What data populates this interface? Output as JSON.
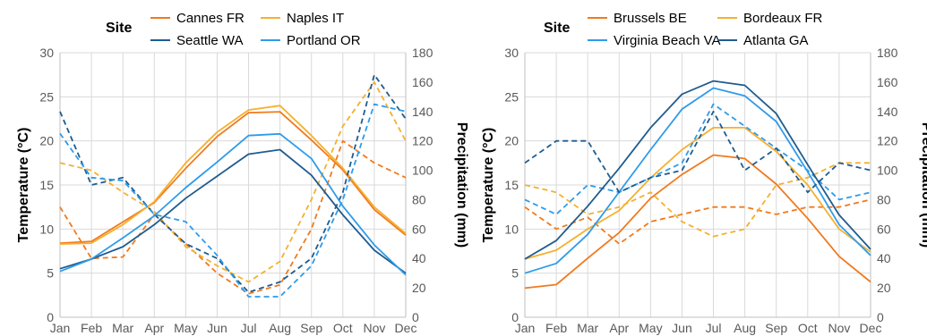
{
  "chart_data": [
    {
      "type": "line",
      "legend_title": "Site",
      "legend_placement": "top",
      "categories": [
        "Jan",
        "Feb",
        "Mar",
        "Apr",
        "May",
        "Jun",
        "Jul",
        "Aug",
        "Sep",
        "Oct",
        "Nov",
        "Dec"
      ],
      "ylabel_left": "Temperature (°C)",
      "ylabel_right": "Precipitation (mm)",
      "ylim_left": [
        0,
        30
      ],
      "ylim_right": [
        0,
        180
      ],
      "yticks_left": [
        0,
        5,
        10,
        15,
        20,
        25,
        30
      ],
      "yticks_right": [
        0,
        20,
        40,
        60,
        80,
        100,
        120,
        140,
        160,
        180
      ],
      "grid": true,
      "series": [
        {
          "name": "Cannes FR",
          "color": "#f07a1e",
          "temperature": [
            8.4,
            8.6,
            10.8,
            13.0,
            16.9,
            20.5,
            23.2,
            23.3,
            20.1,
            16.7,
            12.2,
            9.3
          ],
          "precipitation": [
            75,
            40,
            41,
            70,
            50,
            30,
            16,
            22,
            60,
            120,
            105,
            95
          ]
        },
        {
          "name": "Naples IT",
          "color": "#f5b02e",
          "temperature": [
            8.3,
            8.4,
            10.5,
            13.1,
            17.5,
            21.0,
            23.5,
            24.0,
            20.6,
            16.9,
            12.5,
            9.5
          ],
          "precipitation": [
            105,
            100,
            85,
            72,
            48,
            35,
            24,
            38,
            80,
            130,
            160,
            120
          ]
        },
        {
          "name": "Seattle WA",
          "color": "#1f5c8f",
          "temperature": [
            5.5,
            6.6,
            8.0,
            10.5,
            13.5,
            16.0,
            18.5,
            19.0,
            16.1,
            11.6,
            7.6,
            5.0
          ],
          "precipitation": [
            140,
            90,
            95,
            70,
            50,
            40,
            17,
            24,
            40,
            85,
            165,
            135
          ]
        },
        {
          "name": "Portland OR",
          "color": "#2e9bea",
          "temperature": [
            5.2,
            6.6,
            9.0,
            11.5,
            14.7,
            17.6,
            20.6,
            20.8,
            18.0,
            12.6,
            8.2,
            4.8
          ],
          "precipitation": [
            125,
            95,
            93,
            70,
            65,
            42,
            14,
            14,
            35,
            80,
            145,
            140
          ]
        }
      ]
    },
    {
      "type": "line",
      "legend_title": "Site",
      "legend_placement": "top",
      "categories": [
        "Jan",
        "Feb",
        "Mar",
        "Apr",
        "May",
        "Jun",
        "Jul",
        "Aug",
        "Sep",
        "Oct",
        "Nov",
        "Dec"
      ],
      "ylabel_left": "Temperature (°C)",
      "ylabel_right": "Precipitation (mm)",
      "ylim_left": [
        0,
        30
      ],
      "ylim_right": [
        0,
        180
      ],
      "yticks_left": [
        0,
        5,
        10,
        15,
        20,
        25,
        30
      ],
      "yticks_right": [
        0,
        20,
        40,
        60,
        80,
        100,
        120,
        140,
        160,
        180
      ],
      "grid": true,
      "series": [
        {
          "name": "Brussels BE",
          "color": "#f07a1e",
          "temperature": [
            3.3,
            3.7,
            6.7,
            9.6,
            13.5,
            16.2,
            18.4,
            18.0,
            15.1,
            11.2,
            6.9,
            4.0
          ],
          "precipitation": [
            75,
            60,
            68,
            50,
            65,
            70,
            75,
            75,
            70,
            75,
            75,
            80
          ]
        },
        {
          "name": "Bordeaux FR",
          "color": "#f5b02e",
          "temperature": [
            6.6,
            7.6,
            10.0,
            12.1,
            15.8,
            19.0,
            21.5,
            21.5,
            18.8,
            15.0,
            10.0,
            7.4
          ],
          "precipitation": [
            90,
            85,
            70,
            75,
            85,
            65,
            55,
            60,
            90,
            95,
            105,
            105
          ]
        },
        {
          "name": "Virginia Beach VA",
          "color": "#2e9bea",
          "temperature": [
            5.0,
            6.1,
            9.4,
            14.2,
            19.0,
            23.6,
            26.0,
            25.1,
            22.2,
            16.5,
            10.5,
            7.0
          ],
          "precipitation": [
            80,
            70,
            90,
            85,
            95,
            105,
            145,
            130,
            115,
            100,
            80,
            85
          ]
        },
        {
          "name": "Atlanta GA",
          "color": "#1f5c8f",
          "temperature": [
            6.6,
            8.7,
            12.6,
            16.9,
            21.5,
            25.3,
            26.8,
            26.3,
            23.1,
            17.3,
            11.6,
            7.7
          ],
          "precipitation": [
            105,
            120,
            120,
            85,
            95,
            100,
            140,
            100,
            115,
            85,
            105,
            100
          ]
        }
      ]
    }
  ]
}
